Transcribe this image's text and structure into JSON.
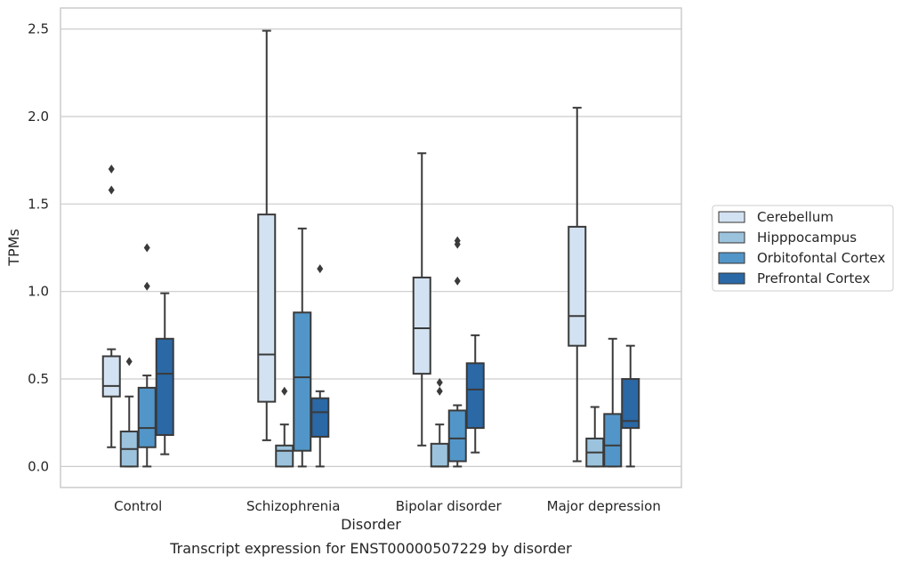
{
  "chart_data": {
    "type": "box",
    "caption": "Transcript expression for ENST00000507229 by disorder",
    "xlabel": "Disorder",
    "ylabel": "TPMs",
    "ylim": [
      -0.12,
      2.62
    ],
    "yticks": [
      0.0,
      0.5,
      1.0,
      1.5,
      2.0,
      2.5
    ],
    "ytick_labels": [
      "0.0",
      "0.5",
      "1.0",
      "1.5",
      "2.0",
      "2.5"
    ],
    "grid": "horizontal",
    "legend_position": "right",
    "categories": [
      "Control",
      "Schizophrenia",
      "Bipolar disorder",
      "Major depression"
    ],
    "series": [
      {
        "name": "Cerebellum",
        "color": "#d3e2f2",
        "boxes": [
          {
            "whisker_low": 0.11,
            "q1": 0.4,
            "median": 0.46,
            "q3": 0.63,
            "whisker_high": 0.67,
            "outliers": [
              1.58,
              1.7
            ]
          },
          {
            "whisker_low": 0.15,
            "q1": 0.37,
            "median": 0.64,
            "q3": 1.44,
            "whisker_high": 2.49,
            "outliers": []
          },
          {
            "whisker_low": 0.12,
            "q1": 0.53,
            "median": 0.79,
            "q3": 1.08,
            "whisker_high": 1.79,
            "outliers": []
          },
          {
            "whisker_low": 0.03,
            "q1": 0.69,
            "median": 0.86,
            "q3": 1.37,
            "whisker_high": 2.05,
            "outliers": []
          }
        ]
      },
      {
        "name": "Hipppocampus",
        "color": "#9cc3dd",
        "boxes": [
          {
            "whisker_low": 0.0,
            "q1": 0.0,
            "median": 0.1,
            "q3": 0.2,
            "whisker_high": 0.4,
            "outliers": [
              0.6
            ]
          },
          {
            "whisker_low": 0.0,
            "q1": 0.0,
            "median": 0.09,
            "q3": 0.12,
            "whisker_high": 0.24,
            "outliers": [
              0.43
            ]
          },
          {
            "whisker_low": 0.0,
            "q1": 0.0,
            "median": 0.0,
            "q3": 0.13,
            "whisker_high": 0.24,
            "outliers": [
              0.43,
              0.48
            ]
          },
          {
            "whisker_low": 0.0,
            "q1": 0.0,
            "median": 0.08,
            "q3": 0.16,
            "whisker_high": 0.34,
            "outliers": []
          }
        ]
      },
      {
        "name": "Orbitofontal Cortex",
        "color": "#5296c9",
        "boxes": [
          {
            "whisker_low": 0.0,
            "q1": 0.11,
            "median": 0.22,
            "q3": 0.45,
            "whisker_high": 0.52,
            "outliers": [
              1.03,
              1.25
            ]
          },
          {
            "whisker_low": 0.0,
            "q1": 0.09,
            "median": 0.51,
            "q3": 0.88,
            "whisker_high": 1.36,
            "outliers": []
          },
          {
            "whisker_low": 0.0,
            "q1": 0.03,
            "median": 0.16,
            "q3": 0.32,
            "whisker_high": 0.35,
            "outliers": [
              1.06,
              1.27,
              1.29
            ]
          },
          {
            "whisker_low": 0.0,
            "q1": 0.0,
            "median": 0.12,
            "q3": 0.3,
            "whisker_high": 0.73,
            "outliers": []
          }
        ]
      },
      {
        "name": "Prefrontal Cortex",
        "color": "#2a68a6",
        "boxes": [
          {
            "whisker_low": 0.07,
            "q1": 0.18,
            "median": 0.53,
            "q3": 0.73,
            "whisker_high": 0.99,
            "outliers": []
          },
          {
            "whisker_low": 0.0,
            "q1": 0.17,
            "median": 0.31,
            "q3": 0.39,
            "whisker_high": 0.43,
            "outliers": [
              1.13
            ]
          },
          {
            "whisker_low": 0.08,
            "q1": 0.22,
            "median": 0.44,
            "q3": 0.59,
            "whisker_high": 0.75,
            "outliers": []
          },
          {
            "whisker_low": 0.0,
            "q1": 0.22,
            "median": 0.26,
            "q3": 0.5,
            "whisker_high": 0.69,
            "outliers": []
          }
        ]
      }
    ]
  }
}
